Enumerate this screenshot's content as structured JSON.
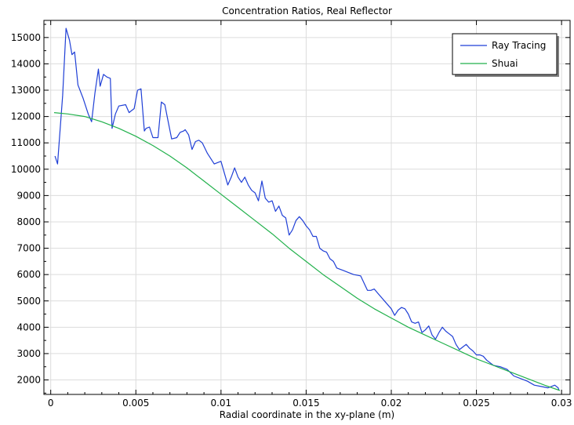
{
  "chart_data": {
    "type": "line",
    "title": "Concentration Ratios, Real Reflector",
    "xlabel": "Radial coordinate in the xy-plane (m)",
    "ylabel": "",
    "xlim": [
      -0.0004,
      0.0305
    ],
    "ylim": [
      1450,
      15650
    ],
    "grid": true,
    "legend_position": "top-right",
    "x_ticks": [
      0,
      0.005,
      0.01,
      0.015,
      0.02,
      0.025,
      0.03
    ],
    "x_tick_labels": [
      "0",
      "0.005",
      "0.01",
      "0.015",
      "0.02",
      "0.025",
      "0.03"
    ],
    "y_ticks": [
      2000,
      3000,
      4000,
      5000,
      6000,
      7000,
      8000,
      9000,
      10000,
      11000,
      12000,
      13000,
      14000,
      15000
    ],
    "y_tick_labels": [
      "2000",
      "3000",
      "4000",
      "5000",
      "6000",
      "7000",
      "8000",
      "9000",
      "10000",
      "11000",
      "12000",
      "13000",
      "14000",
      "15000"
    ],
    "series": [
      {
        "name": "Ray Tracing",
        "color": "#1f3fd6",
        "x": [
          0.00025,
          0.0004,
          0.0007,
          0.0009,
          0.0011,
          0.00125,
          0.0014,
          0.00145,
          0.0016,
          0.0019,
          0.0022,
          0.0024,
          0.0026,
          0.0028,
          0.0029,
          0.0031,
          0.0033,
          0.0035,
          0.0036,
          0.0038,
          0.004,
          0.0044,
          0.0046,
          0.0047,
          0.0049,
          0.0051,
          0.0053,
          0.0055,
          0.0056,
          0.0058,
          0.006,
          0.0063,
          0.0065,
          0.0067,
          0.0069,
          0.0071,
          0.0074,
          0.0076,
          0.0078,
          0.0079,
          0.0081,
          0.0083,
          0.0085,
          0.0087,
          0.0089,
          0.0092,
          0.0096,
          0.01,
          0.0104,
          0.0106,
          0.0108,
          0.011,
          0.0112,
          0.0114,
          0.0116,
          0.0118,
          0.012,
          0.0122,
          0.0124,
          0.0126,
          0.0128,
          0.013,
          0.0132,
          0.0134,
          0.0136,
          0.0138,
          0.014,
          0.0142,
          0.0144,
          0.0146,
          0.0148,
          0.015,
          0.0152,
          0.0154,
          0.0156,
          0.0158,
          0.016,
          0.0162,
          0.0164,
          0.0166,
          0.0168,
          0.017,
          0.0172,
          0.0174,
          0.0178,
          0.0182,
          0.0186,
          0.0188,
          0.019,
          0.0192,
          0.0196,
          0.02,
          0.0202,
          0.0204,
          0.0206,
          0.0208,
          0.021,
          0.0212,
          0.0214,
          0.0216,
          0.0218,
          0.022,
          0.0222,
          0.0224,
          0.0226,
          0.0228,
          0.023,
          0.0232,
          0.0234,
          0.0236,
          0.0238,
          0.024,
          0.0242,
          0.0244,
          0.0246,
          0.0248,
          0.025,
          0.0252,
          0.0254,
          0.0256,
          0.026,
          0.0264,
          0.0268,
          0.0272,
          0.0276,
          0.028,
          0.0284,
          0.0288,
          0.0292,
          0.0294,
          0.0296,
          0.0298,
          0.02985
        ],
        "values": [
          10500,
          10200,
          12800,
          15350,
          14900,
          14350,
          14450,
          14150,
          13200,
          12700,
          12100,
          11800,
          12900,
          13800,
          13150,
          13600,
          13500,
          13450,
          11550,
          12100,
          12400,
          12450,
          12150,
          12200,
          12300,
          13000,
          13050,
          11450,
          11550,
          11600,
          11200,
          11200,
          12550,
          12450,
          11800,
          11150,
          11200,
          11400,
          11450,
          11500,
          11300,
          10750,
          11050,
          11100,
          11000,
          10600,
          10200,
          10300,
          9400,
          9700,
          10050,
          9700,
          9500,
          9700,
          9400,
          9200,
          9100,
          8800,
          9550,
          8900,
          8750,
          8800,
          8400,
          8600,
          8250,
          8150,
          7500,
          7700,
          8050,
          8200,
          8050,
          7850,
          7700,
          7450,
          7450,
          7000,
          6900,
          6850,
          6600,
          6500,
          6250,
          6200,
          6150,
          6100,
          6000,
          5950,
          5400,
          5400,
          5450,
          5300,
          5000,
          4700,
          4450,
          4650,
          4750,
          4700,
          4500,
          4200,
          4150,
          4200,
          3800,
          3900,
          4050,
          3700,
          3550,
          3800,
          4000,
          3850,
          3750,
          3650,
          3350,
          3150,
          3250,
          3350,
          3200,
          3100,
          2950,
          2950,
          2900,
          2750,
          2550,
          2500,
          2400,
          2150,
          2050,
          1950,
          1800,
          1750,
          1700,
          1750,
          1800,
          1700,
          1600
        ]
      },
      {
        "name": "Shuai",
        "color": "#22b14c",
        "x": [
          0.0002,
          0.001,
          0.002,
          0.003,
          0.004,
          0.005,
          0.006,
          0.007,
          0.008,
          0.009,
          0.01,
          0.011,
          0.012,
          0.013,
          0.014,
          0.015,
          0.016,
          0.017,
          0.018,
          0.019,
          0.02,
          0.021,
          0.022,
          0.023,
          0.024,
          0.025,
          0.026,
          0.027,
          0.028,
          0.029,
          0.0299
        ],
        "values": [
          12150,
          12100,
          12000,
          11800,
          11550,
          11250,
          10900,
          10500,
          10050,
          9550,
          9050,
          8550,
          8050,
          7550,
          7000,
          6500,
          6000,
          5550,
          5100,
          4700,
          4350,
          4000,
          3700,
          3400,
          3100,
          2800,
          2550,
          2300,
          2050,
          1800,
          1600
        ]
      }
    ]
  }
}
